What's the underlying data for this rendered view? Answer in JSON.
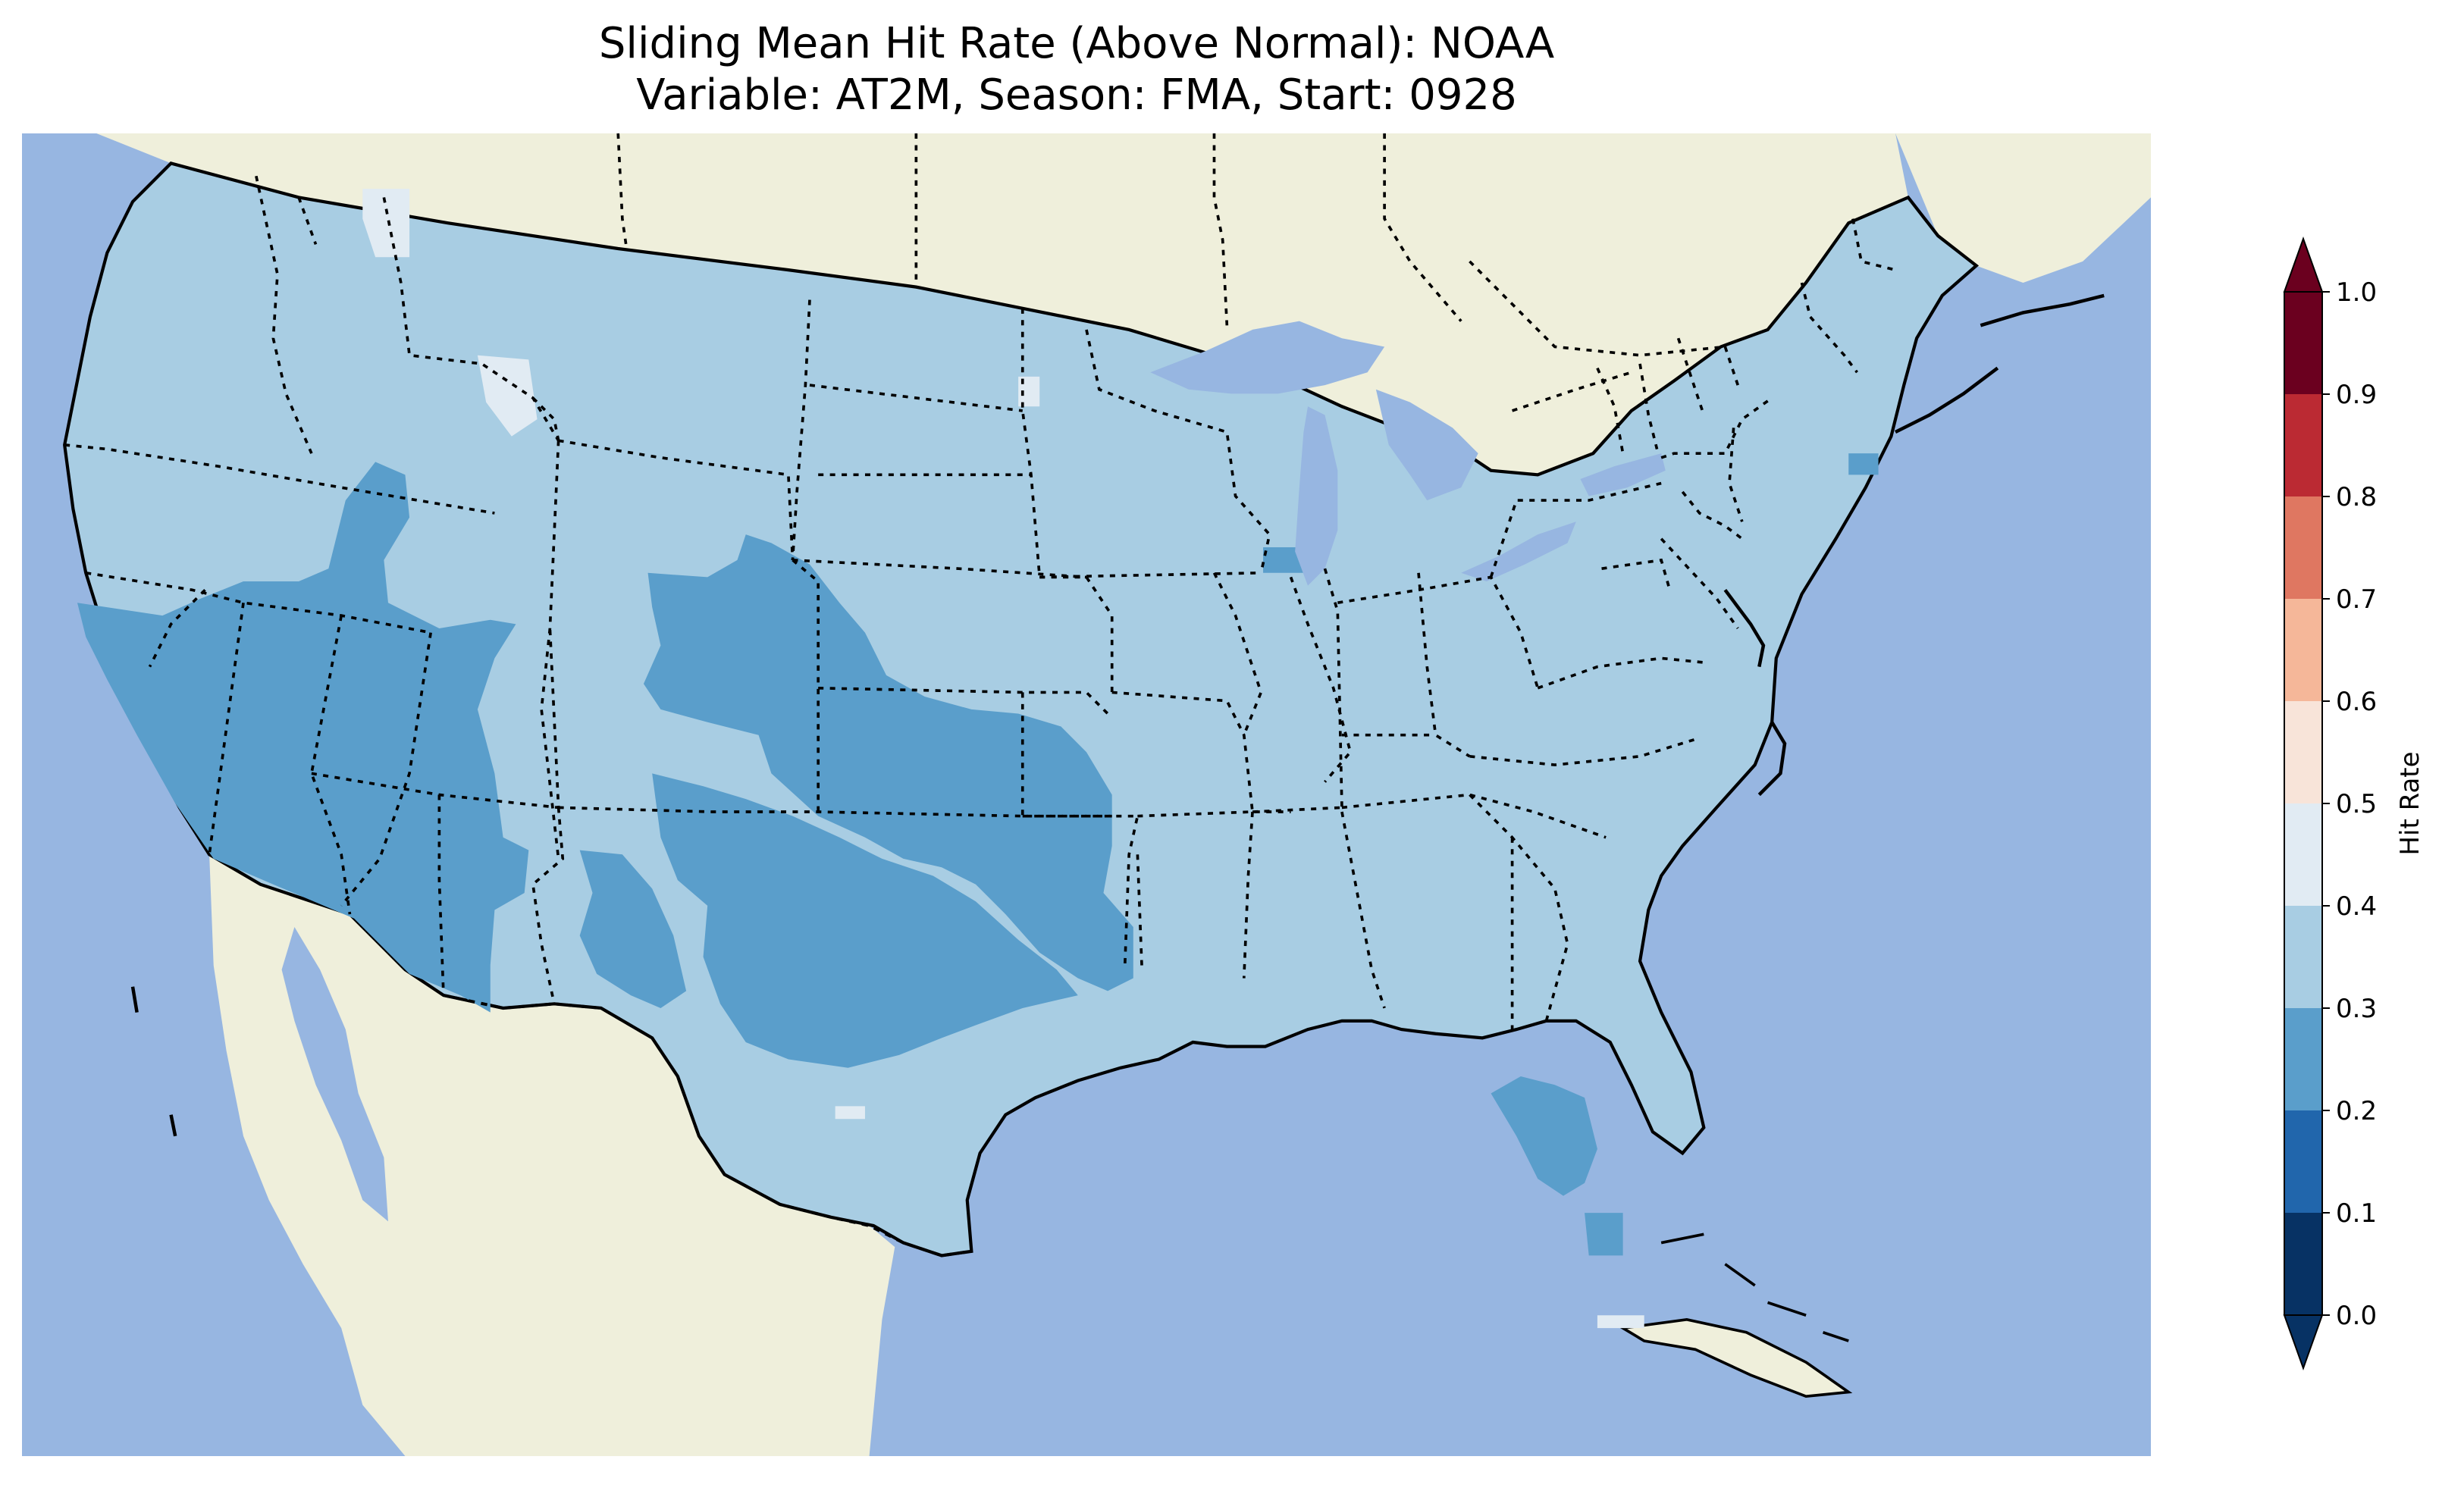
{
  "title": {
    "line1": "Sliding Mean Hit Rate (Above Normal): NOAA",
    "line2": "Variable: AT2M, Season: FMA, Start: 0928"
  },
  "map": {
    "region": "contiguous-united-states",
    "colors": {
      "ocean": "#97b6e1",
      "land": "#efefdb",
      "lakes": "#97b6e1",
      "coast": "#000000",
      "borders": "#000000"
    },
    "regions": [
      {
        "name": "southwest-california-arizona-nevada",
        "bin": "0.2-0.3",
        "color": "#5a9ecb"
      },
      {
        "name": "colorado-kansas-oklahoma",
        "bin": "0.2-0.3",
        "color": "#5a9ecb"
      },
      {
        "name": "west-texas-new-mexico",
        "bin": "0.2-0.3",
        "color": "#5a9ecb"
      },
      {
        "name": "florida-peninsula",
        "bin": "0.2-0.3",
        "color": "#5a9ecb"
      },
      {
        "name": "northern-idaho-patches",
        "bin": "0.4-0.5",
        "color": "#e1ebf3"
      },
      {
        "name": "rest-of-conus",
        "bin": "0.3-0.4",
        "color": "#a8cde3"
      }
    ]
  },
  "colorbar": {
    "label": "Hit Rate",
    "ticks": [
      "0.0",
      "0.1",
      "0.2",
      "0.3",
      "0.4",
      "0.5",
      "0.6",
      "0.7",
      "0.8",
      "0.9",
      "1.0"
    ],
    "bins": [
      {
        "from": 0.0,
        "to": 0.1,
        "color": "#073264"
      },
      {
        "from": 0.1,
        "to": 0.2,
        "color": "#2166ac"
      },
      {
        "from": 0.2,
        "to": 0.3,
        "color": "#5a9ecb"
      },
      {
        "from": 0.3,
        "to": 0.4,
        "color": "#a8cde3"
      },
      {
        "from": 0.4,
        "to": 0.5,
        "color": "#e1ebf3"
      },
      {
        "from": 0.5,
        "to": 0.6,
        "color": "#f8e4d9"
      },
      {
        "from": 0.6,
        "to": 0.7,
        "color": "#f5b799"
      },
      {
        "from": 0.7,
        "to": 0.8,
        "color": "#df7761"
      },
      {
        "from": 0.8,
        "to": 0.9,
        "color": "#bb2a33"
      },
      {
        "from": 0.9,
        "to": 1.0,
        "color": "#6b001f"
      }
    ],
    "extend_low_color": "#073264",
    "extend_high_color": "#6b001f"
  }
}
